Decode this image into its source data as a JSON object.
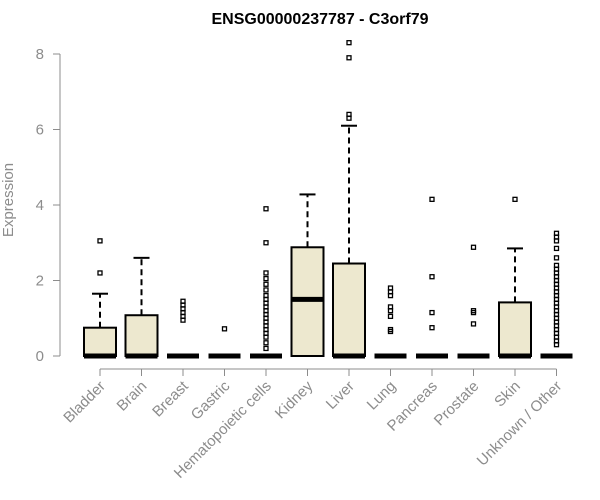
{
  "chart_data": {
    "type": "box",
    "title": "ENSG00000237787 - C3orf79",
    "xlabel": "",
    "ylabel": "Expression",
    "ylim": [
      0,
      8.4
    ],
    "yticks": [
      0,
      2,
      4,
      6,
      8
    ],
    "style": {
      "box_fill": "#ede8cf",
      "stroke": "#000000",
      "axis_color": "#8c8c8c"
    },
    "categories": [
      "Bladder",
      "Brain",
      "Breast",
      "Gastric",
      "Hematopoietic cells",
      "Kidney",
      "Liver",
      "Lung",
      "Pancreas",
      "Prostate",
      "Skin",
      "Unknown / Other"
    ],
    "boxes": [
      {
        "q1": 0,
        "median": 0,
        "q3": 0.75,
        "whisker_low": 0,
        "whisker_high": 1.65,
        "outliers": [
          2.2,
          3.05
        ]
      },
      {
        "q1": 0,
        "median": 0,
        "q3": 1.08,
        "whisker_low": 0,
        "whisker_high": 2.6,
        "outliers": []
      },
      {
        "q1": 0,
        "median": 0,
        "q3": 0,
        "whisker_low": 0,
        "whisker_high": 0,
        "outliers": [
          0.95,
          1.05,
          1.15,
          1.25,
          1.35,
          1.45
        ]
      },
      {
        "q1": 0,
        "median": 0,
        "q3": 0,
        "whisker_low": 0,
        "whisker_high": 0,
        "outliers": [
          0.72
        ]
      },
      {
        "q1": 0,
        "median": 0,
        "q3": 0,
        "whisker_low": 0,
        "whisker_high": 0,
        "outliers": [
          0.2,
          0.35,
          0.5,
          0.6,
          0.7,
          0.8,
          0.9,
          1.0,
          1.1,
          1.2,
          1.3,
          1.4,
          1.5,
          1.6,
          1.75,
          1.9,
          2.05,
          2.2,
          3.0,
          3.9
        ]
      },
      {
        "q1": 0,
        "median": 1.5,
        "q3": 2.88,
        "whisker_low": 0,
        "whisker_high": 4.28,
        "outliers": []
      },
      {
        "q1": 0,
        "median": 0,
        "q3": 2.45,
        "whisker_low": 0,
        "whisker_high": 6.1,
        "outliers": [
          6.3,
          6.4,
          7.9,
          8.3
        ]
      },
      {
        "q1": 0,
        "median": 0,
        "q3": 0,
        "whisker_low": 0,
        "whisker_high": 0,
        "outliers": [
          0.65,
          0.7,
          1.05,
          1.2,
          1.3,
          1.6,
          1.7,
          1.8
        ]
      },
      {
        "q1": 0,
        "median": 0,
        "q3": 0,
        "whisker_low": 0,
        "whisker_high": 0,
        "outliers": [
          0.75,
          1.15,
          2.1,
          4.15
        ]
      },
      {
        "q1": 0,
        "median": 0,
        "q3": 0,
        "whisker_low": 0,
        "whisker_high": 0,
        "outliers": [
          0.85,
          1.15,
          1.2,
          2.88
        ]
      },
      {
        "q1": 0,
        "median": 0,
        "q3": 1.42,
        "whisker_low": 0,
        "whisker_high": 2.85,
        "outliers": [
          4.15
        ]
      },
      {
        "q1": 0,
        "median": 0,
        "q3": 0,
        "whisker_low": 0,
        "whisker_high": 0,
        "outliers": [
          0.3,
          0.4,
          0.5,
          0.6,
          0.7,
          0.8,
          0.9,
          1.0,
          1.1,
          1.2,
          1.3,
          1.4,
          1.5,
          1.6,
          1.7,
          1.8,
          1.9,
          2.0,
          2.1,
          2.2,
          2.3,
          2.4,
          2.6,
          2.85,
          3.05,
          3.15,
          3.25
        ]
      }
    ]
  }
}
